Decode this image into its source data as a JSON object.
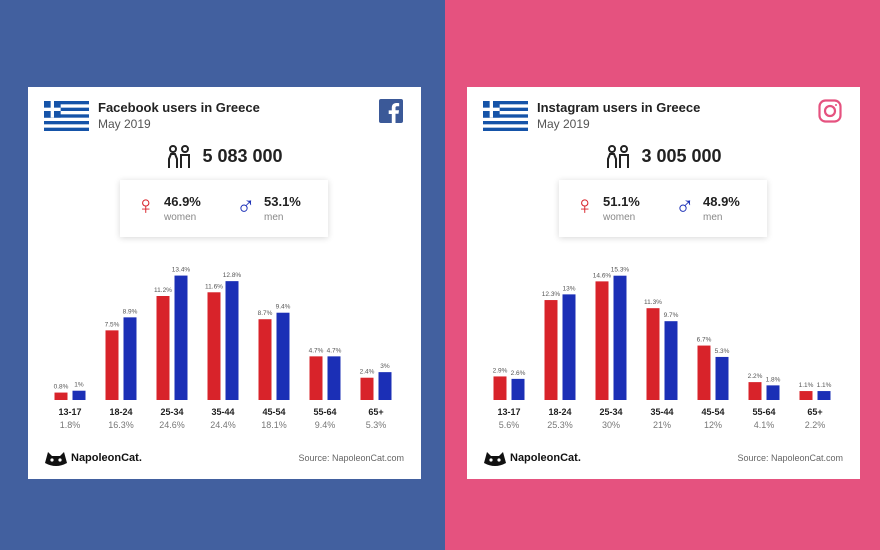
{
  "colors": {
    "left_bg": "#42609F",
    "right_bg": "#E5527F",
    "women": "#D8232A",
    "men": "#1B2FB6"
  },
  "panels": {
    "facebook": {
      "title": "Facebook users in Greece",
      "subtitle": "May 2019",
      "brand_icon": "facebook-icon",
      "total": "5 083 000",
      "women_pct": "46.9%",
      "women_label": "women",
      "men_pct": "53.1%",
      "men_label": "men",
      "logo": "NapoleonCat.",
      "source": "Source: NapoleonCat.com"
    },
    "instagram": {
      "title": "Instagram users in Greece",
      "subtitle": "May 2019",
      "brand_icon": "instagram-icon",
      "total": "3 005 000",
      "women_pct": "51.1%",
      "women_label": "women",
      "men_pct": "48.9%",
      "men_label": "men",
      "logo": "NapoleonCat.",
      "source": "Source: NapoleonCat.com"
    }
  },
  "chart_data": [
    {
      "type": "bar",
      "categories": [
        "13-17",
        "18-24",
        "25-34",
        "35-44",
        "45-54",
        "55-64",
        "65+"
      ],
      "category_shares": [
        "1.8%",
        "16.3%",
        "24.6%",
        "24.4%",
        "18.1%",
        "9.4%",
        "5.3%"
      ],
      "series": [
        {
          "values": [
            0.8,
            7.5,
            11.2,
            11.6,
            8.7,
            4.7,
            2.4
          ],
          "labels": [
            "0.8%",
            "7.5%",
            "11.2%",
            "11.6%",
            "8.7%",
            "4.7%",
            "2.4%"
          ],
          "color": "#D8232A"
        },
        {
          "values": [
            1,
            8.9,
            13.4,
            12.8,
            9.4,
            4.7,
            3
          ],
          "labels": [
            "1%",
            "8.9%",
            "13.4%",
            "12.8%",
            "9.4%",
            "4.7%",
            "3%"
          ],
          "color": "#1B2FB6"
        }
      ],
      "ylim": [
        0,
        14
      ],
      "grid": false,
      "legend": "none"
    },
    {
      "type": "bar",
      "categories": [
        "13-17",
        "18-24",
        "25-34",
        "35-44",
        "45-54",
        "55-64",
        "65+"
      ],
      "category_shares": [
        "5.6%",
        "25.3%",
        "30%",
        "21%",
        "12%",
        "4.1%",
        "2.2%"
      ],
      "series": [
        {
          "values": [
            2.9,
            12.3,
            14.6,
            11.3,
            6.7,
            2.2,
            1.1
          ],
          "labels": [
            "2.9%",
            "12.3%",
            "14.6%",
            "11.3%",
            "6.7%",
            "2.2%",
            "1.1%"
          ],
          "color": "#D8232A"
        },
        {
          "values": [
            2.6,
            13,
            15.3,
            9.7,
            5.3,
            1.8,
            1.1
          ],
          "labels": [
            "2.6%",
            "13%",
            "15.3%",
            "9.7%",
            "5.3%",
            "1.8%",
            "1.1%"
          ],
          "color": "#1B2FB6"
        }
      ],
      "ylim": [
        0,
        16
      ],
      "grid": false,
      "legend": "none"
    }
  ]
}
